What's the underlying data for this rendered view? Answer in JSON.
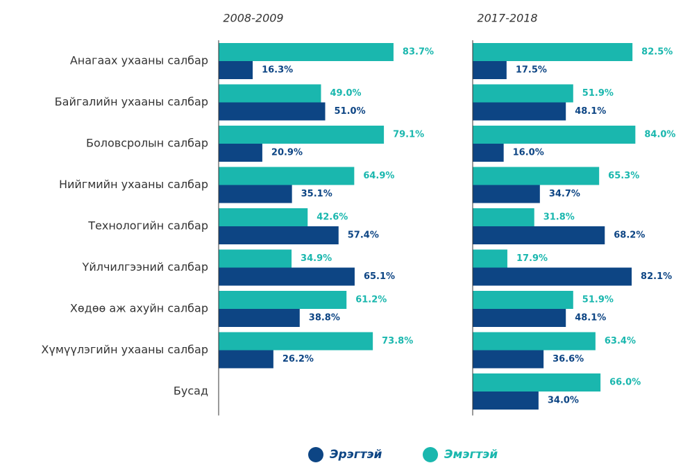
{
  "chart_data": [
    {
      "type": "bar",
      "orientation": "horizontal",
      "title": "2008-2009",
      "categories": [
        "Анагаах ухааны салбар",
        "Байгалийн ухааны салбар",
        "Боловсролын салбар",
        "Нийгмийн ухааны салбар",
        "Технологийн салбар",
        "Үйлчилгээний салбар",
        "Хөдөө аж ахуйн салбар",
        "Хүмүүлэгийн ухааны салбар",
        "Бусад"
      ],
      "xlim": [
        0,
        100
      ],
      "legend": "bottom",
      "series": [
        {
          "name": "Эрэгтэй",
          "color": "#0d4584",
          "values": [
            16.3,
            51.0,
            20.9,
            35.1,
            57.4,
            65.1,
            38.8,
            26.2,
            null
          ],
          "value_labels": [
            "16.3%",
            "51.0%",
            "20.9%",
            "35.1%",
            "57.4%",
            "65.1%",
            "38.8%",
            "26.2%",
            null
          ]
        },
        {
          "name": "Эмэгтэй",
          "color": "#1ab7ae",
          "values": [
            83.7,
            49.0,
            79.1,
            64.9,
            42.6,
            34.9,
            61.2,
            73.8,
            null
          ],
          "value_labels": [
            "83.7%",
            "49.0%",
            "79.1%",
            "64.9%",
            "42.6%",
            "34.9%",
            "61.2%",
            "73.8%",
            null
          ]
        }
      ]
    },
    {
      "type": "bar",
      "orientation": "horizontal",
      "title": "2017-2018",
      "xlim": [
        0,
        100
      ],
      "series": [
        {
          "color": "#0d4584",
          "values": [
            17.5,
            48.1,
            16.0,
            34.7,
            68.2,
            82.1,
            48.1,
            36.6,
            34.0
          ],
          "value_labels": [
            "17.5%",
            "48.1%",
            "16.0%",
            "34.7%",
            "68.2%",
            "82.1%",
            "48.1%",
            "36.6%",
            "34.0%"
          ]
        },
        {
          "color": "#1ab7ae",
          "values": [
            82.5,
            51.9,
            84.0,
            65.3,
            31.8,
            17.9,
            51.9,
            63.4,
            66.0
          ],
          "value_labels": [
            "82.5%",
            "51.9%",
            "84.0%",
            "65.3%",
            "31.8%",
            "17.9%",
            "51.9%",
            "63.4%",
            "66.0%"
          ]
        }
      ]
    }
  ]
}
